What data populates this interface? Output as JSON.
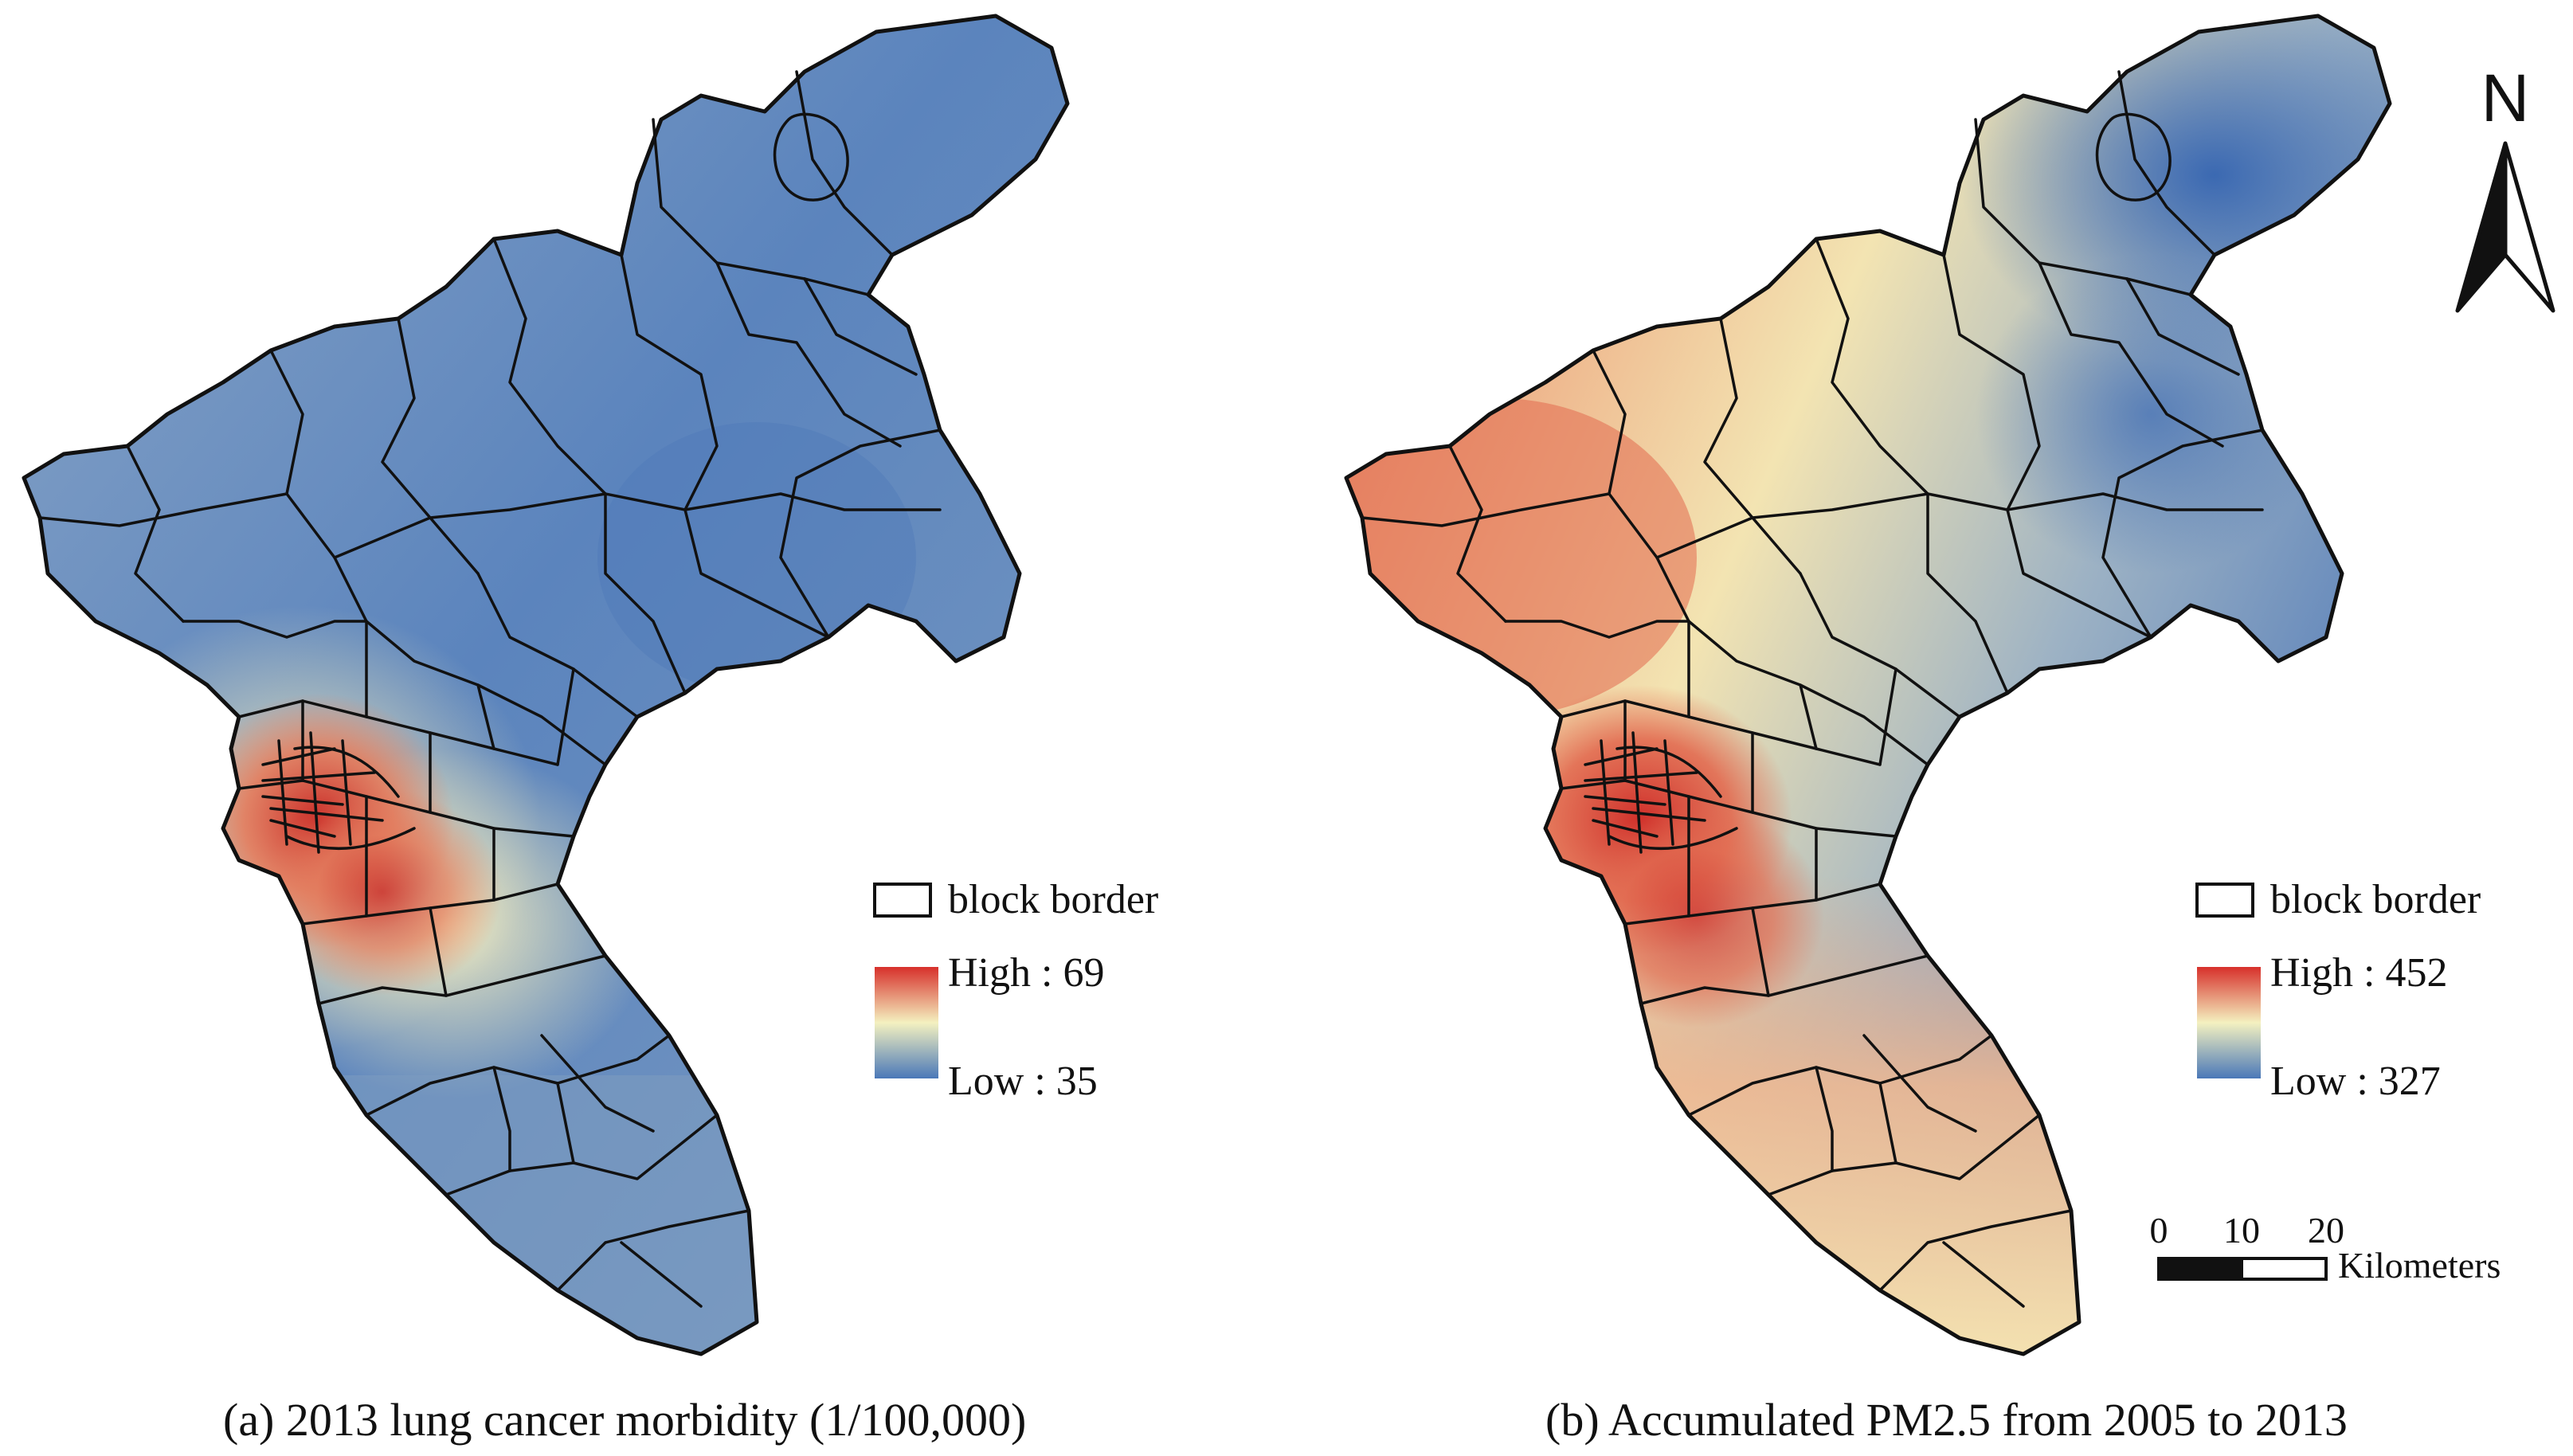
{
  "panels": [
    {
      "caption": "(a) 2013 lung cancer morbidity (1/100,000)",
      "legend": {
        "border_label": "block border",
        "high_label": "High : 69",
        "low_label": "Low : 35",
        "high_value": 69,
        "low_value": 35
      },
      "colors": {
        "north": "#4f7ab8",
        "middle": "#6f93c4",
        "west": "#8fa9c6",
        "center": "#c9d6b9",
        "core": "#d6453a",
        "south": "#e4e4c0",
        "tail": "#7f9fc2"
      }
    },
    {
      "caption": "(b) Accumulated PM2.5 from 2005 to 2013",
      "legend": {
        "border_label": "block border",
        "high_label": "High : 452",
        "low_label": "Low : 327",
        "high_value": 452,
        "low_value": 327
      },
      "colors": {
        "north": "#3f6fb5",
        "middle": "#d9dfc0",
        "west": "#e67a5e",
        "center": "#f0b58a",
        "core": "#d83d34",
        "south": "#f3c69a",
        "tail": "#f7e6b0"
      }
    }
  ],
  "ramp": {
    "high": "#d7302b",
    "middle": "#f4f1c0",
    "low": "#4a78b8"
  },
  "north_arrow": {
    "label": "N"
  },
  "scale_bar": {
    "ticks": [
      "0",
      "10",
      "20"
    ],
    "unit": "Kilometers"
  }
}
